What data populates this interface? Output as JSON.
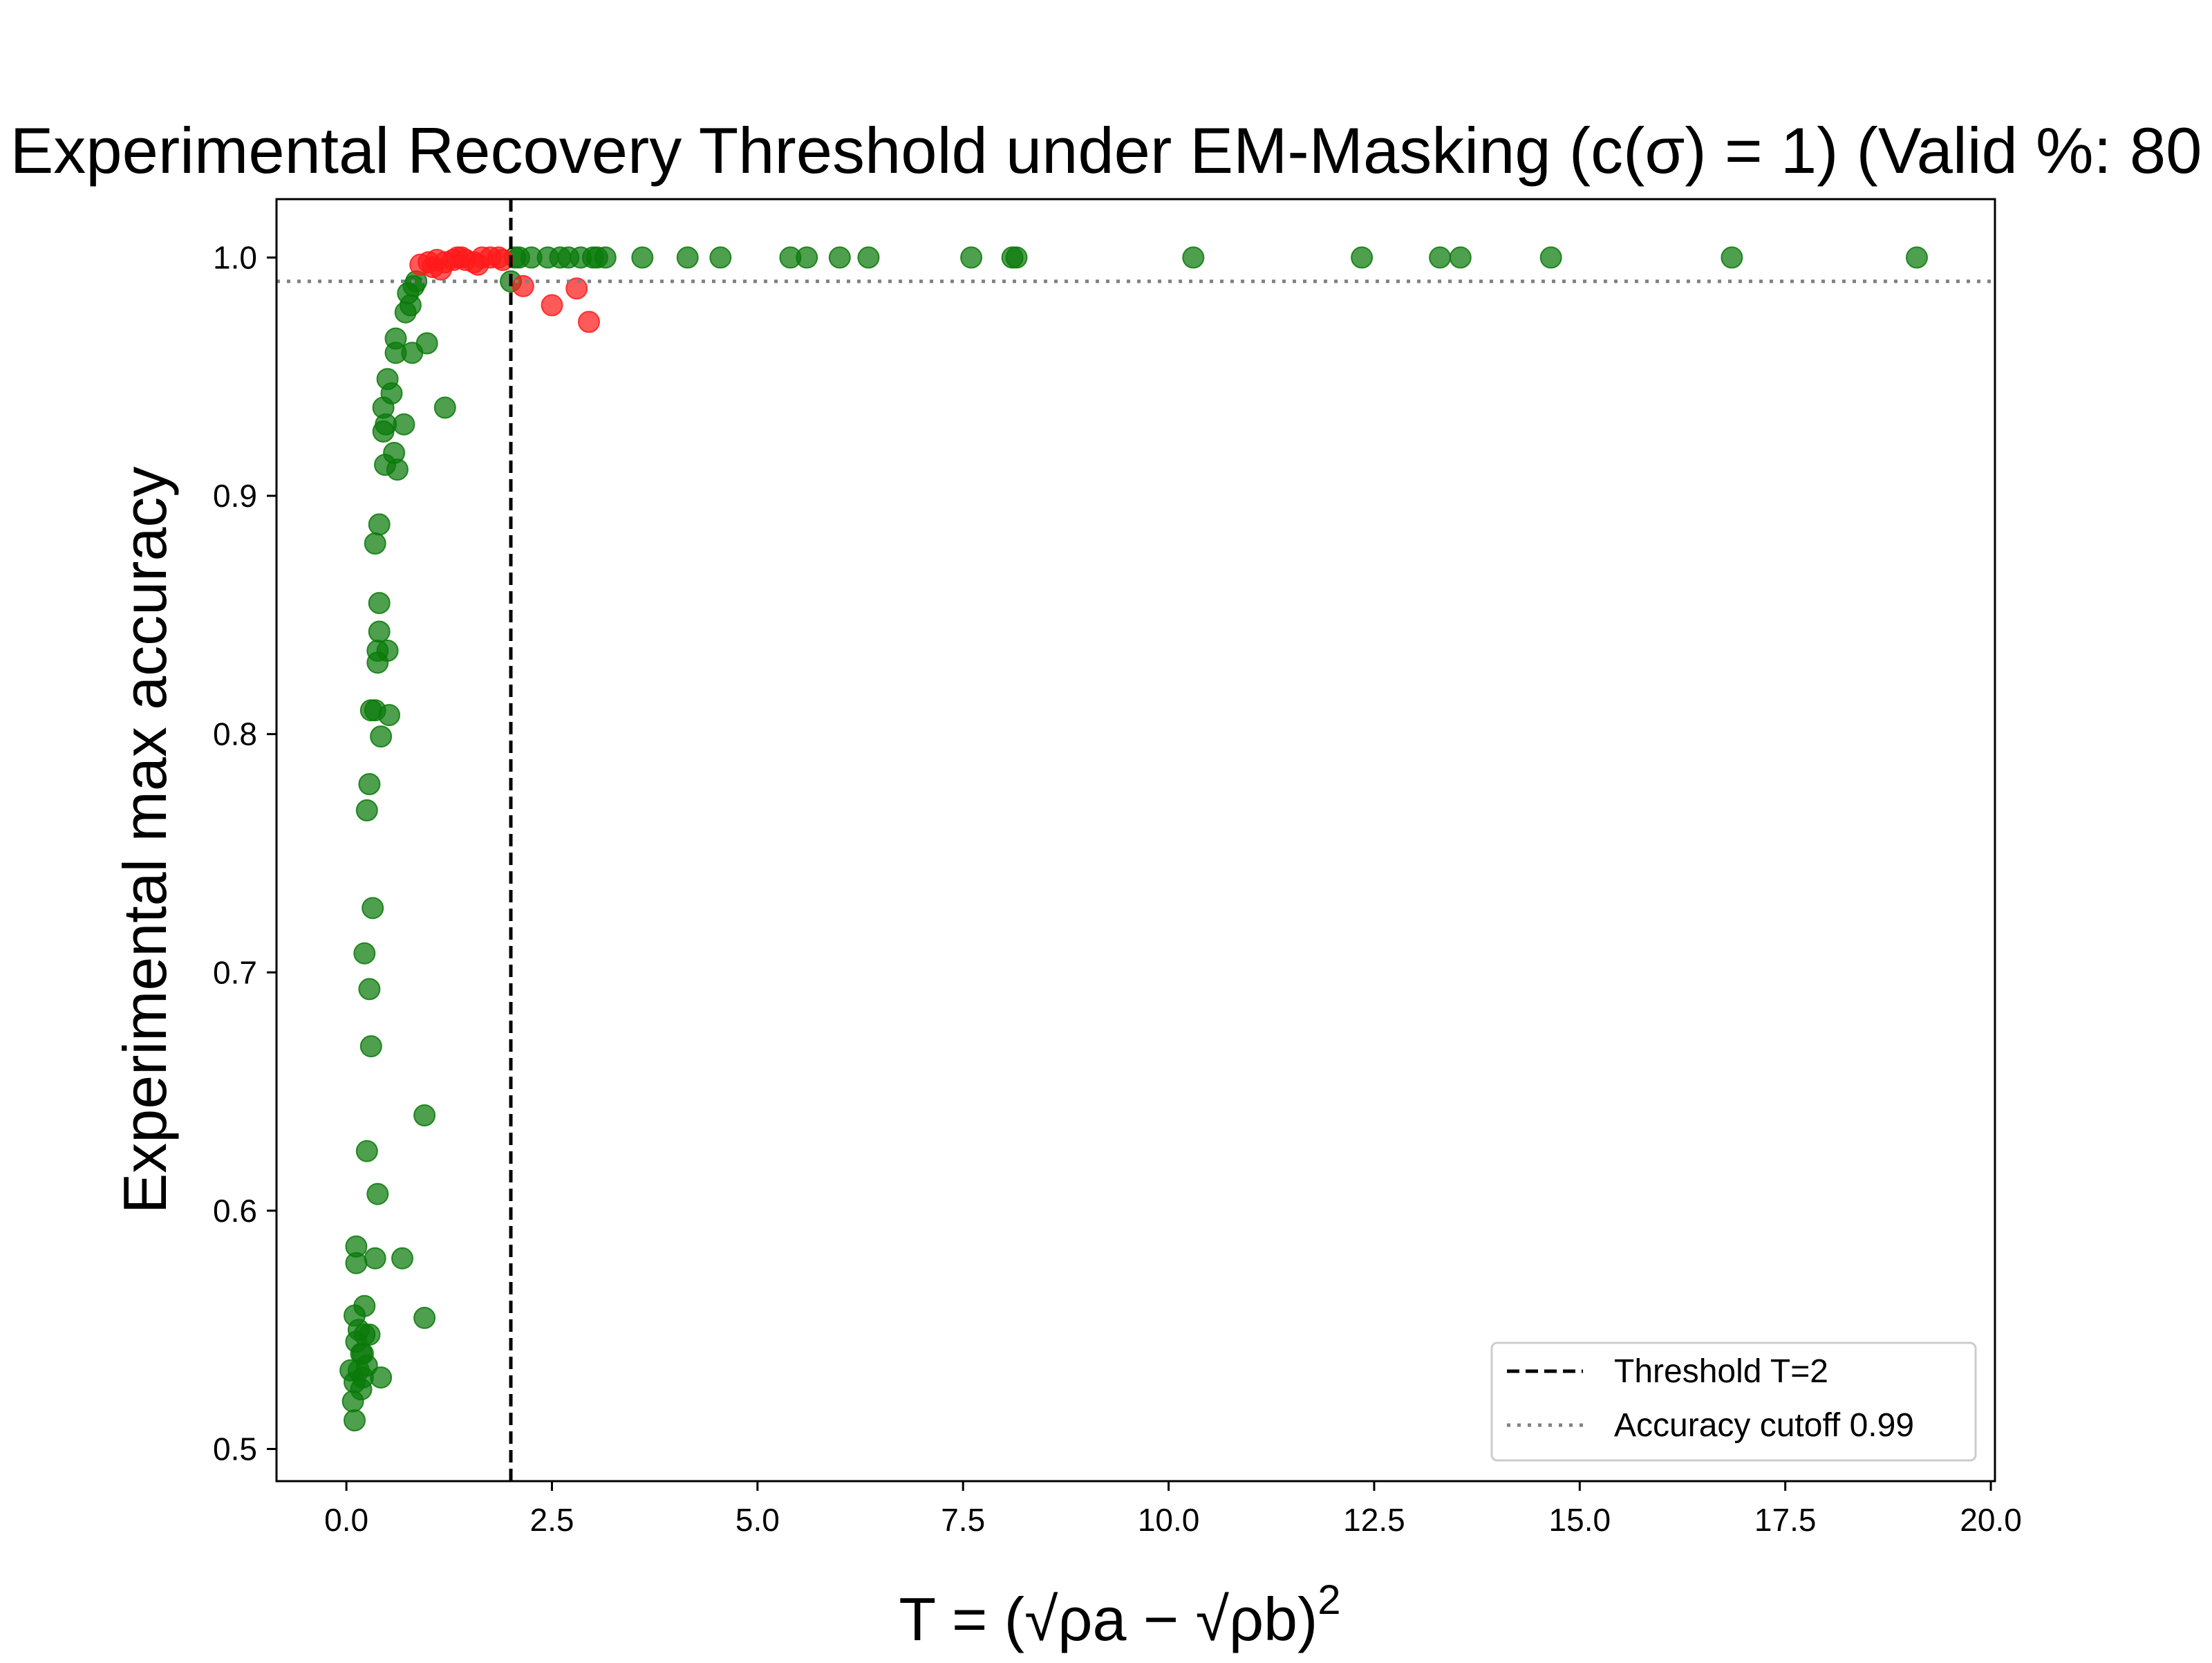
{
  "chart_data": {
    "type": "scatter",
    "title": "Experimental Recovery Threshold under EM-Masking (c(σ) = 1) (Valid %: 80",
    "xlabel": "T = (√ρa − √ρb)",
    "xlabel_sup": "2",
    "ylabel": "Experimental max accuracy",
    "xlim": [
      -0.85,
      20.05
    ],
    "ylim": [
      0.4865,
      1.0245
    ],
    "xticks": [
      0.0,
      2.5,
      5.0,
      7.5,
      10.0,
      12.5,
      15.0,
      17.5,
      20.0
    ],
    "xtick_labels": [
      "0.0",
      "2.5",
      "5.0",
      "7.5",
      "10.0",
      "12.5",
      "15.0",
      "17.5",
      "20.0"
    ],
    "yticks": [
      0.5,
      0.6,
      0.7,
      0.8,
      0.9,
      1.0
    ],
    "ytick_labels": [
      "0.5",
      "0.6",
      "0.7",
      "0.8",
      "0.9",
      "1.0"
    ],
    "grid": false,
    "legend_position": "lower-right",
    "threshold": {
      "value": 2,
      "label": "Threshold T=2",
      "color": "#000000",
      "style": "dashed"
    },
    "cutoff": {
      "value": 0.99,
      "label": "Accuracy cutoff 0.99",
      "color": "#808080",
      "style": "dotted"
    },
    "colors": {
      "green": "#0a7a0a",
      "red": "#ff1a1a"
    },
    "series": [
      {
        "color": "green",
        "points": [
          [
            0.05,
            0.533
          ],
          [
            0.08,
            0.52
          ],
          [
            0.1,
            0.512
          ],
          [
            0.1,
            0.528
          ],
          [
            0.1,
            0.556
          ],
          [
            0.12,
            0.545
          ],
          [
            0.12,
            0.578
          ],
          [
            0.12,
            0.585
          ],
          [
            0.15,
            0.533
          ],
          [
            0.15,
            0.55
          ],
          [
            0.18,
            0.525
          ],
          [
            0.18,
            0.54
          ],
          [
            0.2,
            0.53
          ],
          [
            0.22,
            0.56
          ],
          [
            0.22,
            0.548
          ],
          [
            0.2,
            0.54
          ],
          [
            0.25,
            0.535
          ],
          [
            0.28,
            0.548
          ],
          [
            0.35,
            0.58
          ],
          [
            0.42,
            0.53
          ],
          [
            0.22,
            0.708
          ],
          [
            0.25,
            0.625
          ],
          [
            0.25,
            0.768
          ],
          [
            0.28,
            0.693
          ],
          [
            0.28,
            0.779
          ],
          [
            0.3,
            0.669
          ],
          [
            0.32,
            0.727
          ],
          [
            0.3,
            0.81
          ],
          [
            0.35,
            0.81
          ],
          [
            0.35,
            0.88
          ],
          [
            0.38,
            0.607
          ],
          [
            0.38,
            0.83
          ],
          [
            0.38,
            0.835
          ],
          [
            0.4,
            0.843
          ],
          [
            0.4,
            0.855
          ],
          [
            0.4,
            0.888
          ],
          [
            0.42,
            0.799
          ],
          [
            0.45,
            0.927
          ],
          [
            0.45,
            0.937
          ],
          [
            0.47,
            0.913
          ],
          [
            0.48,
            0.93
          ],
          [
            0.5,
            0.949
          ],
          [
            0.5,
            0.835
          ],
          [
            0.52,
            0.808
          ],
          [
            0.55,
            0.943
          ],
          [
            0.58,
            0.918
          ],
          [
            0.6,
            0.96
          ],
          [
            0.6,
            0.966
          ],
          [
            0.62,
            0.911
          ],
          [
            0.68,
            0.58
          ],
          [
            0.7,
            0.93
          ],
          [
            0.72,
            0.977
          ],
          [
            0.75,
            0.985
          ],
          [
            0.78,
            0.98
          ],
          [
            0.8,
            0.96
          ],
          [
            0.82,
            0.988
          ],
          [
            0.85,
            0.99
          ],
          [
            0.95,
            0.64
          ],
          [
            0.95,
            0.555
          ],
          [
            0.98,
            0.964
          ],
          [
            1.2,
            0.937
          ],
          [
            2.0,
            0.99
          ],
          [
            2.05,
            1.0
          ],
          [
            2.1,
            1.0
          ],
          [
            2.25,
            1.0
          ],
          [
            2.45,
            1.0
          ],
          [
            2.6,
            1.0
          ],
          [
            2.7,
            1.0
          ],
          [
            2.85,
            1.0
          ],
          [
            3.0,
            1.0
          ],
          [
            3.05,
            1.0
          ],
          [
            3.15,
            1.0
          ],
          [
            3.6,
            1.0
          ],
          [
            4.15,
            1.0
          ],
          [
            4.55,
            1.0
          ],
          [
            5.4,
            1.0
          ],
          [
            5.6,
            1.0
          ],
          [
            6.0,
            1.0
          ],
          [
            6.35,
            1.0
          ],
          [
            7.6,
            1.0
          ],
          [
            8.1,
            1.0
          ],
          [
            8.15,
            1.0
          ],
          [
            10.3,
            1.0
          ],
          [
            12.35,
            1.0
          ],
          [
            13.3,
            1.0
          ],
          [
            13.55,
            1.0
          ],
          [
            14.65,
            1.0
          ],
          [
            16.85,
            1.0
          ],
          [
            19.1,
            1.0
          ]
        ]
      },
      {
        "color": "red",
        "points": [
          [
            0.9,
            0.997
          ],
          [
            1.0,
            0.998
          ],
          [
            1.05,
            0.996
          ],
          [
            1.1,
            0.999
          ],
          [
            1.15,
            0.995
          ],
          [
            1.2,
            0.998
          ],
          [
            1.3,
            0.999
          ],
          [
            1.35,
            1.0
          ],
          [
            1.4,
            1.0
          ],
          [
            1.45,
            0.999
          ],
          [
            1.55,
            0.998
          ],
          [
            1.6,
            0.997
          ],
          [
            1.65,
            1.0
          ],
          [
            1.75,
            1.0
          ],
          [
            1.85,
            1.0
          ],
          [
            1.9,
            0.999
          ],
          [
            2.15,
            0.988
          ],
          [
            2.5,
            0.98
          ],
          [
            2.8,
            0.987
          ],
          [
            2.95,
            0.973
          ]
        ]
      }
    ]
  }
}
